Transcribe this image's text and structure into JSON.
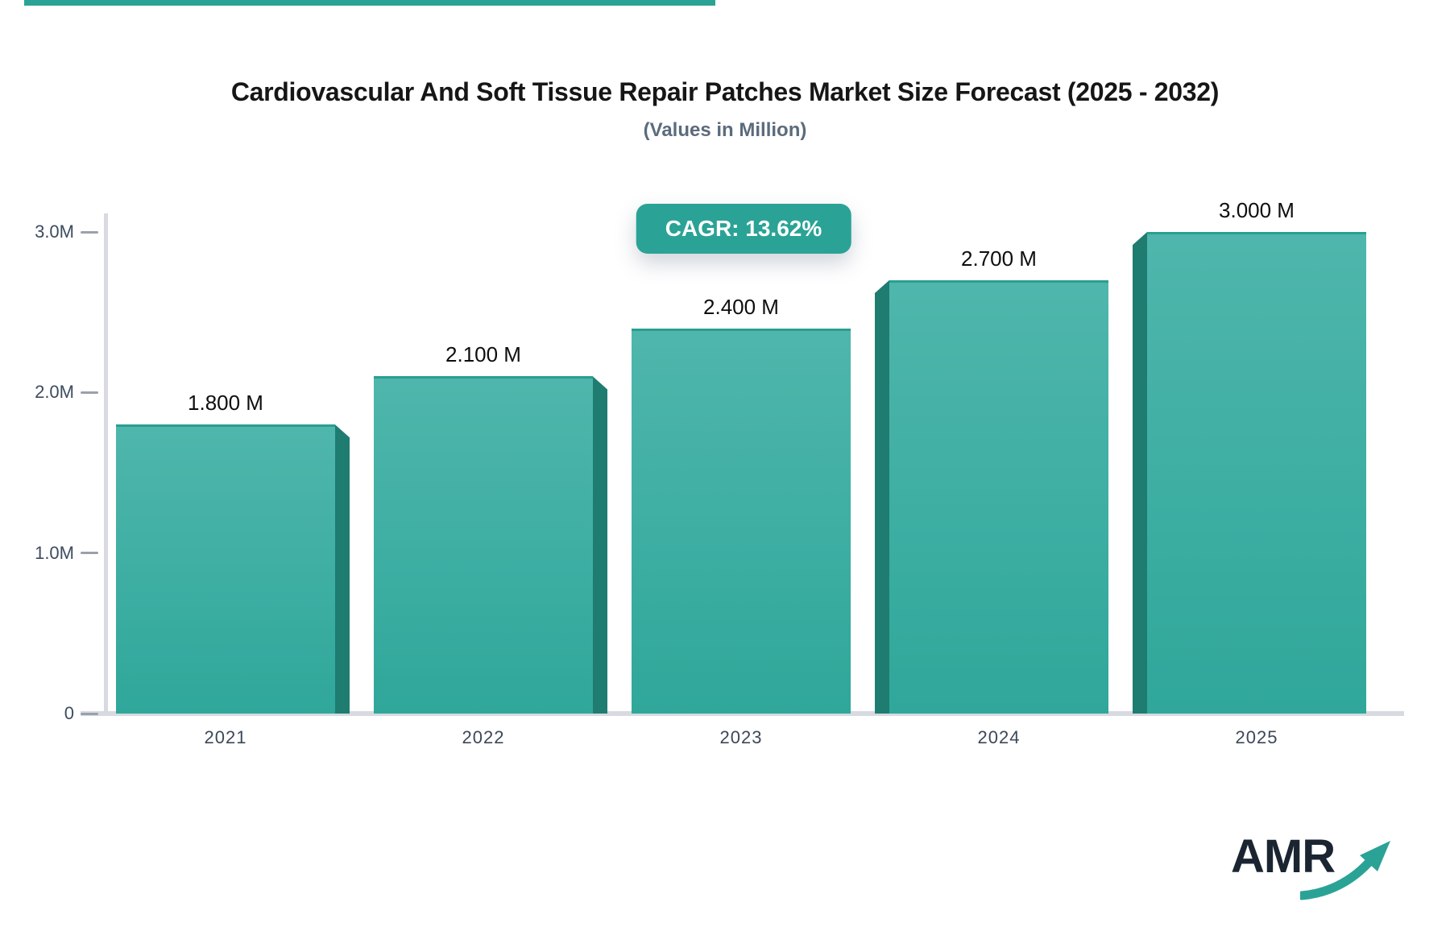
{
  "header": {
    "title": "Cardiovascular And Soft Tissue Repair Patches Market Size Forecast (2025 - 2032)",
    "subtitle": "(Values in Million)"
  },
  "cagr_badge": "CAGR: 13.62%",
  "chart_data": {
    "type": "bar",
    "title": "Cardiovascular And Soft Tissue Repair Patches Market Size Forecast (2025 - 2032)",
    "subtitle": "(Values in Million)",
    "unit": "Million",
    "categories": [
      "2021",
      "2022",
      "2023",
      "2024",
      "2025"
    ],
    "values": [
      1.8,
      2.1,
      2.4,
      2.7,
      3.0
    ],
    "bar_labels": [
      "1.800 M",
      "2.100 M",
      "2.400 M",
      "2.700 M",
      "3.000 M"
    ],
    "annotation": "CAGR: 13.62%",
    "ylim": [
      0,
      3.0
    ],
    "yticks": [
      {
        "label": "0",
        "value": 0
      },
      {
        "label": "1.0M",
        "value": 1
      },
      {
        "label": "2.0M",
        "value": 2
      },
      {
        "label": "3.0M",
        "value": 3
      }
    ],
    "grid": false,
    "legend": false,
    "colors": {
      "bar_top": "#4fb6ac",
      "bar_bottom": "#2fa79a",
      "bar_side": "#1f7c71",
      "bar_edge": "#2b9e92",
      "accent": "#2aa396",
      "axis": "#d7dae0",
      "tick_text": "#3d4b61"
    }
  },
  "branding": {
    "logo_text": "AMR"
  }
}
